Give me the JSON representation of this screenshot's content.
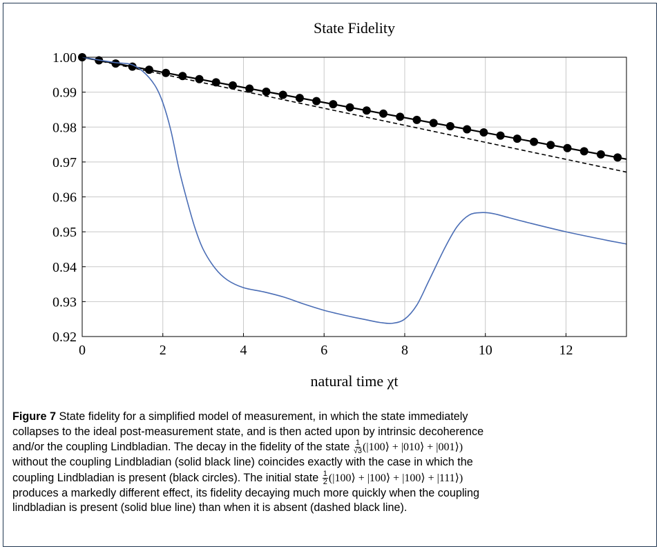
{
  "chart_data": {
    "type": "line",
    "title": "State Fidelity",
    "xlabel": "natural time χt",
    "ylabel": "",
    "xlim": [
      0,
      13.5
    ],
    "ylim": [
      0.92,
      1.0
    ],
    "x_ticks": [
      0,
      2,
      4,
      6,
      8,
      10,
      12
    ],
    "y_ticks": [
      0.92,
      0.93,
      0.94,
      0.95,
      0.96,
      0.97,
      0.98,
      0.99,
      1.0
    ],
    "x_tick_labels": [
      "0",
      "2",
      "4",
      "6",
      "8",
      "10",
      "12"
    ],
    "y_tick_labels": [
      "0.92",
      "0.93",
      "0.94",
      "0.95",
      "0.96",
      "0.97",
      "0.98",
      "0.99",
      "1.00"
    ],
    "grid": true,
    "legend": "none",
    "series": [
      {
        "style": "solid-black",
        "color": "#000000",
        "x": [
          0,
          13.5
        ],
        "y": [
          1.0,
          0.9708
        ]
      },
      {
        "style": "black-circles",
        "color": "#000000",
        "x": [
          0,
          0.415,
          0.83,
          1.245,
          1.66,
          2.075,
          2.49,
          2.905,
          3.32,
          3.735,
          4.15,
          4.565,
          4.98,
          5.395,
          5.81,
          6.225,
          6.64,
          7.055,
          7.47,
          7.885,
          8.3,
          8.715,
          9.13,
          9.545,
          9.96,
          10.375,
          10.79,
          11.205,
          11.62,
          12.035,
          12.45,
          12.865,
          13.28
        ],
        "y": [
          1.0,
          0.9991,
          0.9982,
          0.99731,
          0.99641,
          0.99551,
          0.99461,
          0.99372,
          0.99282,
          0.99192,
          0.99102,
          0.99013,
          0.98923,
          0.98833,
          0.98743,
          0.98654,
          0.98564,
          0.98474,
          0.98384,
          0.98295,
          0.98205,
          0.98115,
          0.98025,
          0.97936,
          0.97846,
          0.97756,
          0.97666,
          0.97577,
          0.97487,
          0.97397,
          0.97307,
          0.97218,
          0.97128
        ]
      },
      {
        "style": "dashed-black",
        "color": "#000000",
        "x": [
          0,
          13.5
        ],
        "y": [
          1.0,
          0.9671
        ]
      },
      {
        "style": "solid-blue",
        "color": "#4a6db5",
        "x": [
          0,
          0.8,
          1.2,
          1.5,
          1.8,
          2.0,
          2.2,
          2.4,
          2.6,
          2.8,
          3.0,
          3.3,
          3.6,
          4.0,
          4.5,
          5.0,
          5.5,
          6.0,
          6.5,
          7.0,
          7.4,
          7.7,
          8.0,
          8.3,
          8.6,
          9.0,
          9.3,
          9.6,
          9.9,
          10.2,
          10.6,
          11.0,
          12.0,
          13.0,
          13.5
        ],
        "y": [
          1.0,
          0.9985,
          0.998,
          0.996,
          0.992,
          0.987,
          0.979,
          0.968,
          0.959,
          0.951,
          0.945,
          0.9395,
          0.9362,
          0.934,
          0.9328,
          0.9313,
          0.9293,
          0.9275,
          0.9261,
          0.9249,
          0.924,
          0.9238,
          0.925,
          0.929,
          0.936,
          0.9455,
          0.9515,
          0.9548,
          0.9555,
          0.9552,
          0.954,
          0.9528,
          0.95,
          0.9476,
          0.9465
        ]
      }
    ]
  },
  "caption": {
    "label": "Figure 7",
    "line1": "State fidelity for a simplified model of measurement, in which the state immediately",
    "line2": "collapses to the ideal post-measurement state, and is then acted upon by intrinsic decoherence",
    "line3_text": "and/or the coupling Lindbladian. The decay in the fidelity of the state",
    "frac1_num": "1",
    "frac1_den": "√3",
    "state1": "(|100⟩ + |010⟩ + |001⟩)",
    "line4": "without the coupling Lindbladian (solid black line) coincides exactly with the case in which the",
    "line5_text": "coupling Lindbladian is present (black circles). The initial state",
    "frac2_num": "1",
    "frac2_den": "2",
    "state2": "(|100⟩ + |100⟩ + |100⟩ + |111⟩)",
    "line6": "produces a markedly different effect, its fidelity decaying much more quickly when the coupling",
    "line7": "lindbladian is present (solid blue line) than when it is absent (dashed black line)."
  }
}
